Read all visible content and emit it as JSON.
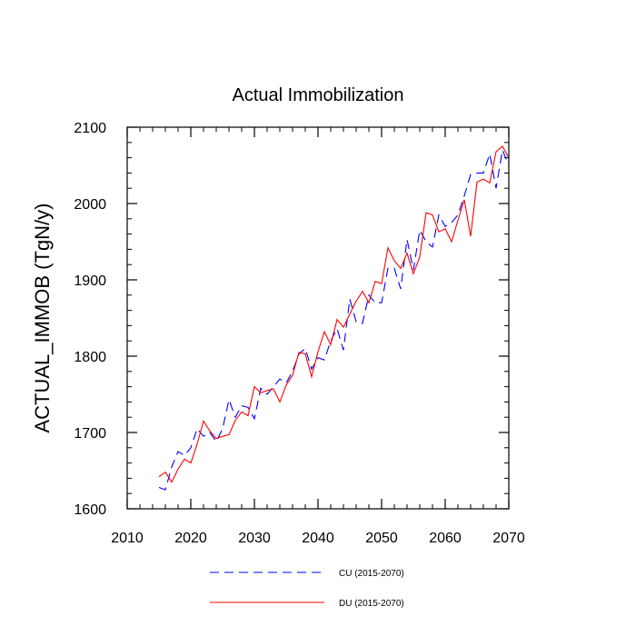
{
  "chart_data": {
    "type": "line",
    "title": "Actual Immobilization",
    "xlabel": "",
    "ylabel": "ACTUAL_IMMOB  (TgN/y)",
    "xlim": [
      2010,
      2070
    ],
    "ylim": [
      1600,
      2100
    ],
    "x_ticks": [
      2010,
      2020,
      2030,
      2040,
      2050,
      2060,
      2070
    ],
    "y_ticks": [
      1600,
      1700,
      1800,
      1900,
      2000,
      2100
    ],
    "x": [
      2015,
      2016,
      2017,
      2018,
      2019,
      2020,
      2021,
      2022,
      2023,
      2024,
      2025,
      2026,
      2027,
      2028,
      2029,
      2030,
      2031,
      2032,
      2033,
      2034,
      2035,
      2036,
      2037,
      2038,
      2039,
      2040,
      2041,
      2042,
      2043,
      2044,
      2045,
      2046,
      2047,
      2048,
      2049,
      2050,
      2051,
      2052,
      2053,
      2054,
      2055,
      2056,
      2057,
      2058,
      2059,
      2060,
      2061,
      2062,
      2063,
      2064,
      2065,
      2066,
      2067,
      2068,
      2069,
      2070
    ],
    "series": [
      {
        "name": "CU (2015-2070)",
        "color": "#0000ff",
        "dash": "dashed",
        "values": [
          1628,
          1625,
          1655,
          1675,
          1670,
          1680,
          1705,
          1695,
          1700,
          1688,
          1705,
          1743,
          1720,
          1735,
          1733,
          1718,
          1758,
          1750,
          1760,
          1770,
          1765,
          1780,
          1803,
          1810,
          1783,
          1798,
          1795,
          1820,
          1836,
          1808,
          1875,
          1845,
          1843,
          1880,
          1870,
          1870,
          1915,
          1915,
          1888,
          1953,
          1913,
          1965,
          1950,
          1943,
          1985,
          1970,
          1975,
          1985,
          2010,
          2038,
          2040,
          2040,
          2065,
          2020,
          2070,
          2050
        ]
      },
      {
        "name": "DU (2015-2070)",
        "color": "#ff0000",
        "dash": "solid",
        "values": [
          1642,
          1648,
          1635,
          1652,
          1665,
          1660,
          1685,
          1715,
          1702,
          1692,
          1695,
          1697,
          1716,
          1727,
          1722,
          1760,
          1752,
          1755,
          1757,
          1740,
          1762,
          1775,
          1805,
          1803,
          1773,
          1806,
          1832,
          1815,
          1848,
          1838,
          1855,
          1872,
          1885,
          1870,
          1898,
          1895,
          1942,
          1925,
          1915,
          1935,
          1908,
          1930,
          1988,
          1985,
          1963,
          1967,
          1950,
          1978,
          2005,
          1957,
          2028,
          2032,
          2027,
          2068,
          2075,
          2060
        ]
      }
    ],
    "legend_position": "bottom"
  }
}
